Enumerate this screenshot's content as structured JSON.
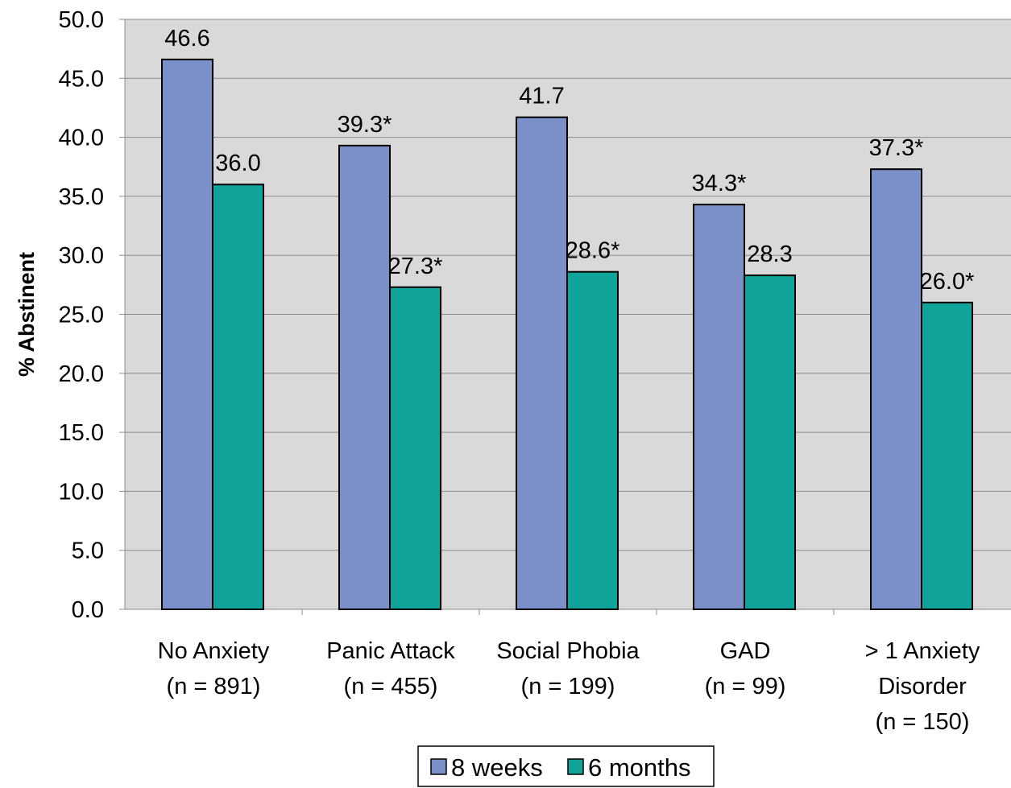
{
  "chart_data": {
    "type": "bar",
    "title": "",
    "xlabel": "",
    "ylabel": "% Abstinent",
    "ylim": [
      0,
      50
    ],
    "ytick_step": 5,
    "ytick_labels": [
      "0.0",
      "5.0",
      "10.0",
      "15.0",
      "20.0",
      "25.0",
      "30.0",
      "35.0",
      "40.0",
      "45.0",
      "50.0"
    ],
    "grid": true,
    "legend_position": "bottom",
    "categories": [
      [
        "No Anxiety",
        "(n = 891)"
      ],
      [
        "Panic Attack",
        "(n = 455)"
      ],
      [
        "Social Phobia",
        "(n = 199)"
      ],
      [
        "GAD",
        "(n = 99)"
      ],
      [
        "> 1 Anxiety",
        "Disorder",
        "(n = 150)"
      ]
    ],
    "series": [
      {
        "name": "8 weeks",
        "color": "#7b8fc8",
        "values": [
          46.6,
          39.3,
          41.7,
          34.3,
          37.3
        ],
        "labels": [
          "46.6",
          "39.3*",
          "41.7",
          "34.3*",
          "37.3*"
        ]
      },
      {
        "name": "6 months",
        "color": "#10a39a",
        "values": [
          36.0,
          27.3,
          28.6,
          28.3,
          26.0
        ],
        "labels": [
          "36.0",
          "27.3*",
          "28.6*",
          "28.3",
          "26.0*"
        ]
      }
    ],
    "plot_background": "#d9d9d9"
  }
}
